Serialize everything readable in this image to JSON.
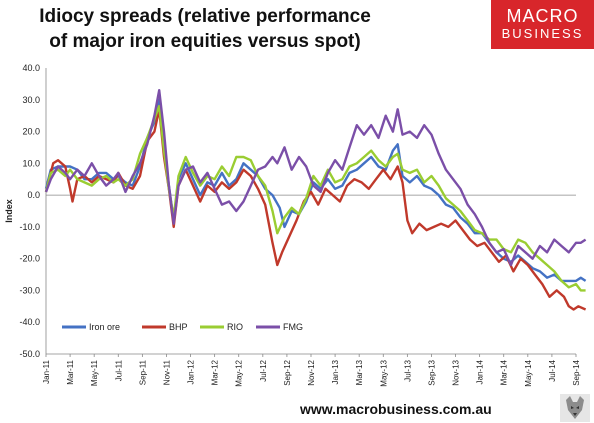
{
  "title_line1": "Idiocy spreads (relative performance",
  "title_line2": "of major iron equities versus spot)",
  "logo": {
    "line1": "MACRO",
    "line2": "BUSINESS"
  },
  "footer": "www.macrobusiness.com.au",
  "chart_data": {
    "type": "line",
    "ylabel": "Index",
    "ylim": [
      -50,
      40
    ],
    "yticks": [
      "40.0",
      "30.0",
      "20.0",
      "10.0",
      "0.0",
      "-10.0",
      "-20.0",
      "-30.0",
      "-40.0",
      "-50.0"
    ],
    "xticks": [
      "Jan-11",
      "Mar-11",
      "May-11",
      "Jul-11",
      "Sep-11",
      "Nov-11",
      "Jan-12",
      "Mar-12",
      "May-12",
      "Jul-12",
      "Sep-12",
      "Nov-12",
      "Jan-13",
      "Mar-13",
      "May-13",
      "Jul-13",
      "Sep-13",
      "Nov-13",
      "Jan-14",
      "Mar-14",
      "May-14",
      "Jul-14",
      "Sep-14"
    ],
    "legend_position": "bottom-left",
    "series": [
      {
        "name": "Iron ore",
        "color": "#4472c4",
        "points": [
          [
            0,
            2
          ],
          [
            0.2,
            8
          ],
          [
            0.5,
            9
          ],
          [
            1,
            9
          ],
          [
            1.3,
            8
          ],
          [
            1.6,
            5
          ],
          [
            1.9,
            5
          ],
          [
            2.2,
            7
          ],
          [
            2.5,
            7
          ],
          [
            2.8,
            5
          ],
          [
            3,
            6
          ],
          [
            3.3,
            4
          ],
          [
            3.6,
            3
          ],
          [
            3.9,
            9
          ],
          [
            4.2,
            18
          ],
          [
            4.5,
            23
          ],
          [
            4.7,
            30
          ],
          [
            4.9,
            15
          ],
          [
            5.1,
            3
          ],
          [
            5.3,
            -8
          ],
          [
            5.5,
            5
          ],
          [
            5.8,
            10
          ],
          [
            6.1,
            5
          ],
          [
            6.4,
            0
          ],
          [
            6.7,
            4
          ],
          [
            7,
            3
          ],
          [
            7.3,
            7
          ],
          [
            7.6,
            3
          ],
          [
            7.9,
            5
          ],
          [
            8.2,
            10
          ],
          [
            8.5,
            8
          ],
          [
            8.8,
            6
          ],
          [
            9.1,
            2
          ],
          [
            9.4,
            0
          ],
          [
            9.7,
            -4
          ],
          [
            9.9,
            -10
          ],
          [
            10.2,
            -5
          ],
          [
            10.5,
            -6
          ],
          [
            10.8,
            -2
          ],
          [
            11.1,
            4
          ],
          [
            11.4,
            2
          ],
          [
            11.7,
            5
          ],
          [
            12,
            2
          ],
          [
            12.3,
            3
          ],
          [
            12.6,
            7
          ],
          [
            12.9,
            8
          ],
          [
            13.2,
            10
          ],
          [
            13.5,
            12
          ],
          [
            13.8,
            9
          ],
          [
            14.1,
            8
          ],
          [
            14.4,
            14
          ],
          [
            14.6,
            16
          ],
          [
            14.8,
            6
          ],
          [
            15.1,
            4
          ],
          [
            15.4,
            6
          ],
          [
            15.7,
            3
          ],
          [
            16,
            2
          ],
          [
            16.3,
            0
          ],
          [
            16.6,
            -3
          ],
          [
            16.9,
            -4
          ],
          [
            17.2,
            -7
          ],
          [
            17.5,
            -9
          ],
          [
            17.8,
            -12
          ],
          [
            18.1,
            -12
          ],
          [
            18.4,
            -15
          ],
          [
            18.7,
            -18
          ],
          [
            19,
            -20
          ],
          [
            19.3,
            -21
          ],
          [
            19.6,
            -19
          ],
          [
            19.9,
            -21
          ],
          [
            20.2,
            -23
          ],
          [
            20.5,
            -24
          ],
          [
            20.8,
            -26
          ],
          [
            21.1,
            -25
          ],
          [
            21.4,
            -27
          ],
          [
            21.7,
            -27
          ],
          [
            22,
            -27
          ],
          [
            22.2,
            -26
          ],
          [
            22.4,
            -27
          ]
        ]
      },
      {
        "name": "BHP",
        "color": "#c0392b",
        "points": [
          [
            0,
            1
          ],
          [
            0.3,
            10
          ],
          [
            0.5,
            11
          ],
          [
            0.8,
            9
          ],
          [
            1,
            2
          ],
          [
            1.1,
            -2
          ],
          [
            1.3,
            5
          ],
          [
            1.6,
            6
          ],
          [
            1.9,
            4
          ],
          [
            2.2,
            6
          ],
          [
            2.5,
            5
          ],
          [
            2.8,
            4
          ],
          [
            3,
            7
          ],
          [
            3.3,
            3
          ],
          [
            3.6,
            2
          ],
          [
            3.9,
            6
          ],
          [
            4.2,
            17
          ],
          [
            4.5,
            20
          ],
          [
            4.7,
            27
          ],
          [
            4.9,
            12
          ],
          [
            5.1,
            2
          ],
          [
            5.3,
            -10
          ],
          [
            5.5,
            3
          ],
          [
            5.8,
            8
          ],
          [
            6.1,
            3
          ],
          [
            6.4,
            -2
          ],
          [
            6.7,
            3
          ],
          [
            7,
            1
          ],
          [
            7.3,
            4
          ],
          [
            7.6,
            2
          ],
          [
            7.9,
            4
          ],
          [
            8.2,
            8
          ],
          [
            8.5,
            6
          ],
          [
            8.8,
            2
          ],
          [
            9.1,
            -3
          ],
          [
            9.4,
            -15
          ],
          [
            9.6,
            -22
          ],
          [
            9.8,
            -18
          ],
          [
            10.1,
            -13
          ],
          [
            10.4,
            -8
          ],
          [
            10.7,
            -2
          ],
          [
            11,
            1
          ],
          [
            11.3,
            -3
          ],
          [
            11.6,
            2
          ],
          [
            11.9,
            0
          ],
          [
            12.2,
            -2
          ],
          [
            12.5,
            3
          ],
          [
            12.8,
            5
          ],
          [
            13.1,
            4
          ],
          [
            13.4,
            2
          ],
          [
            13.7,
            5
          ],
          [
            14,
            8
          ],
          [
            14.3,
            5
          ],
          [
            14.6,
            9
          ],
          [
            14.8,
            4
          ],
          [
            15,
            -8
          ],
          [
            15.2,
            -12
          ],
          [
            15.5,
            -9
          ],
          [
            15.8,
            -11
          ],
          [
            16.1,
            -10
          ],
          [
            16.4,
            -9
          ],
          [
            16.7,
            -10
          ],
          [
            17,
            -8
          ],
          [
            17.3,
            -11
          ],
          [
            17.6,
            -14
          ],
          [
            17.9,
            -16
          ],
          [
            18.2,
            -15
          ],
          [
            18.5,
            -18
          ],
          [
            18.8,
            -21
          ],
          [
            19.1,
            -19
          ],
          [
            19.4,
            -24
          ],
          [
            19.7,
            -20
          ],
          [
            20,
            -22
          ],
          [
            20.3,
            -25
          ],
          [
            20.6,
            -28
          ],
          [
            20.9,
            -32
          ],
          [
            21.2,
            -30
          ],
          [
            21.5,
            -32
          ],
          [
            21.7,
            -35
          ],
          [
            21.9,
            -36
          ],
          [
            22.1,
            -35
          ],
          [
            22.4,
            -36
          ]
        ]
      },
      {
        "name": "RIO",
        "color": "#9acd32",
        "points": [
          [
            0,
            1
          ],
          [
            0.2,
            7
          ],
          [
            0.5,
            8
          ],
          [
            0.8,
            6
          ],
          [
            1,
            8
          ],
          [
            1.3,
            5
          ],
          [
            1.6,
            4
          ],
          [
            1.9,
            3
          ],
          [
            2.2,
            5
          ],
          [
            2.5,
            6
          ],
          [
            2.8,
            4
          ],
          [
            3,
            5
          ],
          [
            3.3,
            3
          ],
          [
            3.6,
            5
          ],
          [
            3.9,
            13
          ],
          [
            4.2,
            18
          ],
          [
            4.5,
            24
          ],
          [
            4.7,
            28
          ],
          [
            4.9,
            14
          ],
          [
            5.1,
            2
          ],
          [
            5.3,
            -7
          ],
          [
            5.5,
            6
          ],
          [
            5.8,
            12
          ],
          [
            6.1,
            7
          ],
          [
            6.4,
            3
          ],
          [
            6.7,
            6
          ],
          [
            7,
            5
          ],
          [
            7.3,
            9
          ],
          [
            7.6,
            6
          ],
          [
            7.9,
            12
          ],
          [
            8.2,
            12
          ],
          [
            8.5,
            11
          ],
          [
            8.8,
            6
          ],
          [
            9.1,
            3
          ],
          [
            9.4,
            -5
          ],
          [
            9.6,
            -12
          ],
          [
            9.9,
            -7
          ],
          [
            10.2,
            -4
          ],
          [
            10.5,
            -6
          ],
          [
            10.8,
            -1
          ],
          [
            11.1,
            6
          ],
          [
            11.4,
            3
          ],
          [
            11.7,
            8
          ],
          [
            12,
            4
          ],
          [
            12.3,
            5
          ],
          [
            12.6,
            9
          ],
          [
            12.9,
            10
          ],
          [
            13.2,
            12
          ],
          [
            13.5,
            14
          ],
          [
            13.8,
            11
          ],
          [
            14.1,
            9
          ],
          [
            14.4,
            12
          ],
          [
            14.6,
            13
          ],
          [
            14.8,
            8
          ],
          [
            15.1,
            7
          ],
          [
            15.4,
            8
          ],
          [
            15.7,
            4
          ],
          [
            16,
            6
          ],
          [
            16.3,
            3
          ],
          [
            16.6,
            -1
          ],
          [
            16.9,
            -3
          ],
          [
            17.2,
            -5
          ],
          [
            17.5,
            -8
          ],
          [
            17.8,
            -11
          ],
          [
            18.1,
            -12
          ],
          [
            18.4,
            -14
          ],
          [
            18.7,
            -14
          ],
          [
            19,
            -17
          ],
          [
            19.3,
            -18
          ],
          [
            19.6,
            -14
          ],
          [
            19.9,
            -15
          ],
          [
            20.2,
            -18
          ],
          [
            20.5,
            -20
          ],
          [
            20.8,
            -22
          ],
          [
            21.1,
            -24
          ],
          [
            21.4,
            -27
          ],
          [
            21.7,
            -29
          ],
          [
            22,
            -28
          ],
          [
            22.2,
            -30
          ],
          [
            22.4,
            -30
          ]
        ]
      },
      {
        "name": "FMG",
        "color": "#7b4fa8",
        "points": [
          [
            0,
            1
          ],
          [
            0.2,
            5
          ],
          [
            0.5,
            9
          ],
          [
            0.8,
            7
          ],
          [
            1,
            5
          ],
          [
            1.3,
            8
          ],
          [
            1.6,
            6
          ],
          [
            1.9,
            10
          ],
          [
            2.2,
            6
          ],
          [
            2.5,
            3
          ],
          [
            2.8,
            5
          ],
          [
            3,
            7
          ],
          [
            3.3,
            1
          ],
          [
            3.6,
            6
          ],
          [
            3.9,
            10
          ],
          [
            4.2,
            16
          ],
          [
            4.5,
            25
          ],
          [
            4.7,
            33
          ],
          [
            4.9,
            20
          ],
          [
            5.1,
            3
          ],
          [
            5.3,
            -9
          ],
          [
            5.5,
            3
          ],
          [
            5.8,
            8
          ],
          [
            6.1,
            9
          ],
          [
            6.4,
            4
          ],
          [
            6.7,
            7
          ],
          [
            7,
            2
          ],
          [
            7.3,
            -3
          ],
          [
            7.6,
            -2
          ],
          [
            7.9,
            -5
          ],
          [
            8.2,
            -2
          ],
          [
            8.5,
            3
          ],
          [
            8.8,
            8
          ],
          [
            9.1,
            9
          ],
          [
            9.4,
            12
          ],
          [
            9.6,
            10
          ],
          [
            9.9,
            15
          ],
          [
            10.2,
            8
          ],
          [
            10.5,
            12
          ],
          [
            10.8,
            9
          ],
          [
            11.1,
            3
          ],
          [
            11.4,
            1
          ],
          [
            11.7,
            7
          ],
          [
            12,
            11
          ],
          [
            12.3,
            8
          ],
          [
            12.6,
            15
          ],
          [
            12.9,
            22
          ],
          [
            13.2,
            19
          ],
          [
            13.5,
            22
          ],
          [
            13.8,
            18
          ],
          [
            14.1,
            25
          ],
          [
            14.4,
            20
          ],
          [
            14.6,
            27
          ],
          [
            14.8,
            19
          ],
          [
            15.1,
            20
          ],
          [
            15.4,
            18
          ],
          [
            15.7,
            22
          ],
          [
            16,
            19
          ],
          [
            16.3,
            13
          ],
          [
            16.6,
            8
          ],
          [
            16.9,
            5
          ],
          [
            17.2,
            2
          ],
          [
            17.5,
            -3
          ],
          [
            17.8,
            -6
          ],
          [
            18.1,
            -10
          ],
          [
            18.4,
            -15
          ],
          [
            18.7,
            -18
          ],
          [
            19,
            -17
          ],
          [
            19.3,
            -22
          ],
          [
            19.6,
            -16
          ],
          [
            19.9,
            -18
          ],
          [
            20.2,
            -20
          ],
          [
            20.5,
            -16
          ],
          [
            20.8,
            -18
          ],
          [
            21.1,
            -14
          ],
          [
            21.4,
            -16
          ],
          [
            21.7,
            -18
          ],
          [
            22,
            -15
          ],
          [
            22.2,
            -15
          ],
          [
            22.4,
            -14
          ]
        ]
      }
    ]
  }
}
